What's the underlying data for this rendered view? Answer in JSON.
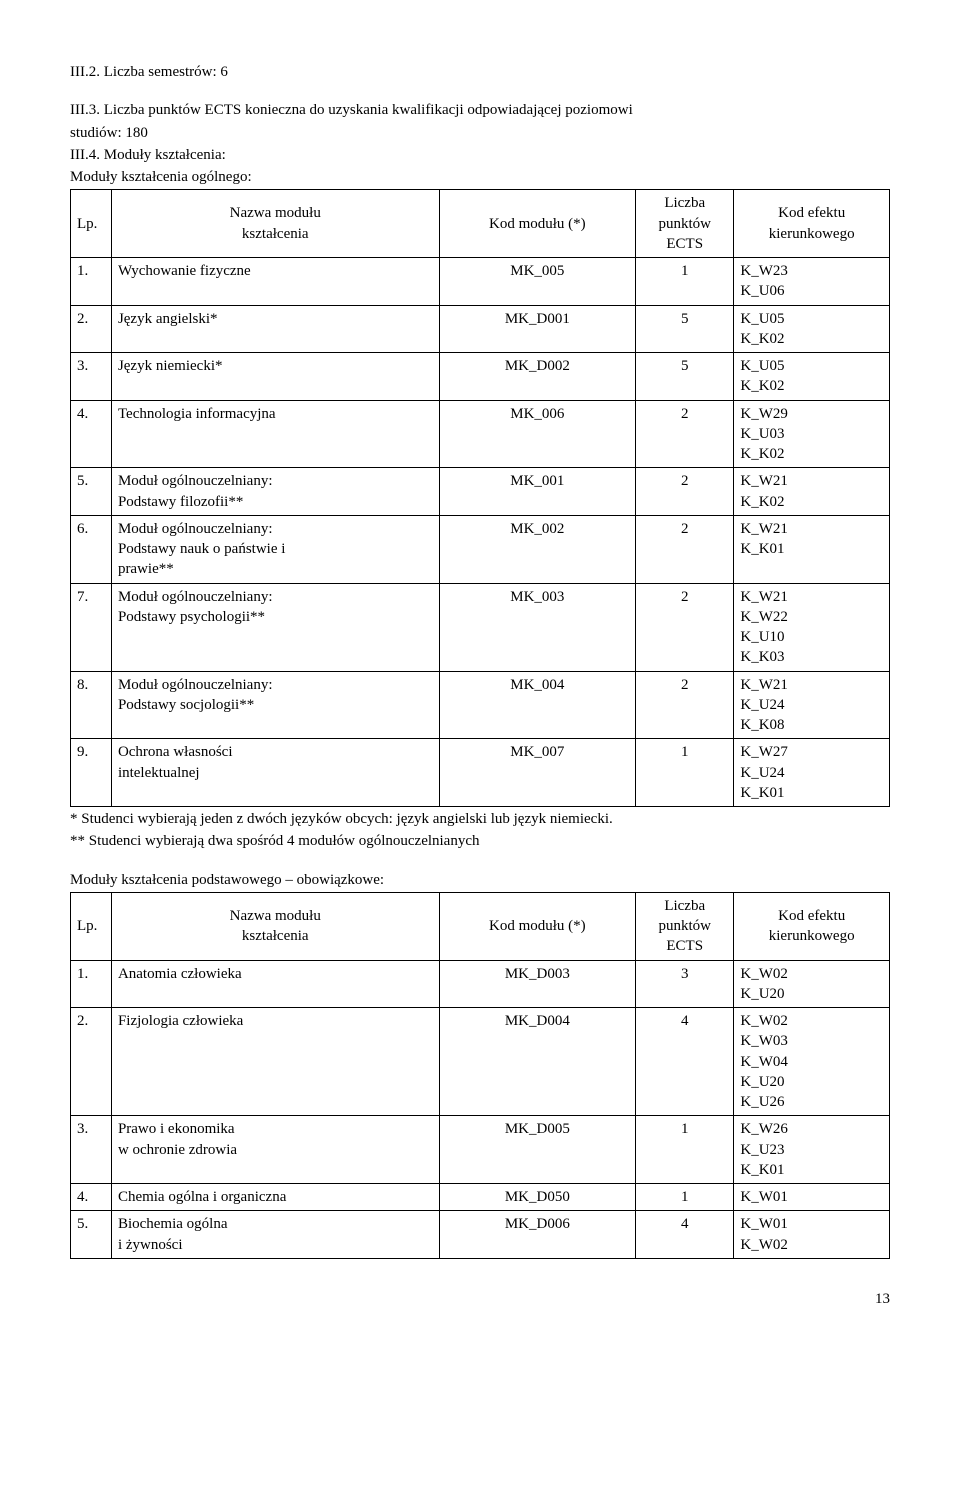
{
  "headings": {
    "s1": "III.2. Liczba semestrów: 6",
    "s2a": "III.3. Liczba punktów ECTS konieczna do uzyskania kwalifikacji odpowiadającej poziomowi",
    "s2b": "studiów: 180",
    "s3": "III.4. Moduły kształcenia:",
    "s4": "Moduły kształcenia ogólnego:",
    "notes1": "*  Studenci wybierają jeden z dwóch języków obcych: język angielski lub język niemiecki.",
    "notes2": "** Studenci wybierają dwa spośród 4 modułów ogólnouczelnianych",
    "s5": "Moduły kształcenia podstawowego – obowiązkowe:"
  },
  "header": {
    "lp": "Lp.",
    "name_l1": "Nazwa modułu",
    "name_l2": "kształcenia",
    "code": "Kod modułu (*)",
    "ects_l1": "Liczba",
    "ects_l2": "punktów",
    "ects_l3": "ECTS",
    "eff_l1": "Kod efektu",
    "eff_l2": "kierunkowego"
  },
  "t1": [
    {
      "lp": "1.",
      "name": "Wychowanie fizyczne",
      "code": "MK_005",
      "ects": "1",
      "eff": "K_W23\nK_U06"
    },
    {
      "lp": "2.",
      "name": "Język angielski*",
      "code": "MK_D001",
      "ects": "5",
      "eff": "K_U05\nK_K02"
    },
    {
      "lp": "3.",
      "name": "Język niemiecki*",
      "code": "MK_D002",
      "ects": "5",
      "eff": "K_U05\nK_K02"
    },
    {
      "lp": "4.",
      "name": "Technologia informacyjna",
      "code": "MK_006",
      "ects": "2",
      "eff": "K_W29\nK_U03\nK_K02"
    },
    {
      "lp": "5.",
      "name": "Moduł ogólnouczelniany:\nPodstawy filozofii**",
      "code": "MK_001",
      "ects": "2",
      "eff": "K_W21\nK_K02"
    },
    {
      "lp": "6.",
      "name": "Moduł ogólnouczelniany:\nPodstawy nauk o państwie i\nprawie**",
      "code": "MK_002",
      "ects": "2",
      "eff": "K_W21\nK_K01"
    },
    {
      "lp": "7.",
      "name": "Moduł ogólnouczelniany:\nPodstawy psychologii**",
      "code": "MK_003",
      "ects": "2",
      "eff": "K_W21\nK_W22\nK_U10\nK_K03"
    },
    {
      "lp": "8.",
      "name": "Moduł ogólnouczelniany:\nPodstawy socjologii**",
      "code": "MK_004",
      "ects": "2",
      "eff": "K_W21\nK_U24\nK_K08"
    },
    {
      "lp": "9.",
      "name": "Ochrona własności\nintelektualnej",
      "code": "MK_007",
      "ects": "1",
      "eff": "K_W27\nK_U24\nK_K01"
    }
  ],
  "t2": [
    {
      "lp": "1.",
      "name": "Anatomia człowieka",
      "code": "MK_D003",
      "ects": "3",
      "eff": "K_W02\nK_U20"
    },
    {
      "lp": "2.",
      "name": "Fizjologia człowieka",
      "code": "MK_D004",
      "ects": "4",
      "eff": "K_W02\nK_W03\nK_W04\nK_U20\nK_U26"
    },
    {
      "lp": "3.",
      "name": "Prawo i ekonomika\nw ochronie zdrowia",
      "code": "MK_D005",
      "ects": "1",
      "eff": "K_W26\nK_U23\nK_K01"
    },
    {
      "lp": "4.",
      "name": "Chemia ogólna i organiczna",
      "code": "MK_D050",
      "ects": "1",
      "eff": "K_W01"
    },
    {
      "lp": "5.",
      "name": "Biochemia ogólna\ni żywności",
      "code": "MK_D006",
      "ects": "4",
      "eff": "K_W01\nK_W02"
    }
  ],
  "page_number": "13"
}
